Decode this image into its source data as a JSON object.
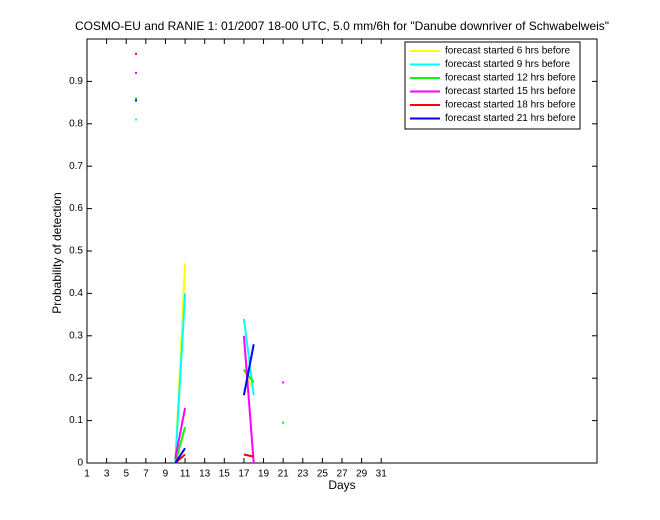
{
  "chart_data": {
    "type": "line",
    "title": "COSMO-EU and RANIE 1: 01/2007 18-00 UTC, 5.0 mm/6h for \"Danube downriver of Schwabelweis\"",
    "xlabel": "Days",
    "ylabel": "Probability of detection",
    "x": [
      6,
      7,
      10,
      11,
      12,
      17,
      18,
      19,
      21
    ],
    "series": [
      {
        "name": "forecast started 6 hrs before",
        "color": "#ffff00",
        "values": [
          0.81,
          null,
          0,
          0.47,
          null,
          0.22,
          0.17,
          null,
          null
        ]
      },
      {
        "name": "forecast started 9 hrs before",
        "color": "#00ffff",
        "values": [
          0.81,
          null,
          0,
          0.4,
          null,
          0.34,
          0.16,
          null,
          null
        ]
      },
      {
        "name": "forecast started 12 hrs before",
        "color": "#00ff00",
        "values": [
          0.86,
          null,
          0,
          0.085,
          null,
          0.22,
          0.19,
          null,
          0.095
        ]
      },
      {
        "name": "forecast started 15 hrs before",
        "color": "#ff00ff",
        "values": [
          0.92,
          null,
          0.01,
          0.13,
          null,
          0.3,
          0,
          null,
          0.19
        ]
      },
      {
        "name": "forecast started 18 hrs before",
        "color": "#ff0000",
        "values": [
          0.965,
          null,
          0,
          0.02,
          null,
          0.02,
          0.015,
          null,
          null
        ]
      },
      {
        "name": "forecast started 21 hrs before",
        "color": "#0000ff",
        "values": [
          0.855,
          null,
          0,
          0.035,
          null,
          0.16,
          0.28,
          null,
          null
        ]
      }
    ],
    "xlim": [
      1,
      53
    ],
    "xticks": [
      1,
      3,
      5,
      7,
      9,
      11,
      13,
      15,
      17,
      19,
      21,
      23,
      25,
      27,
      29,
      31
    ],
    "ylim": [
      0,
      1
    ],
    "yticks": [
      0,
      0.1,
      0.2,
      0.3,
      0.4,
      0.5,
      0.6,
      0.7,
      0.8,
      0.9
    ],
    "legend": "top-right"
  }
}
